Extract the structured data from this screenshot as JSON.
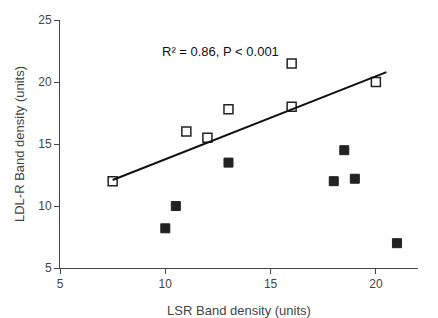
{
  "chart_data": {
    "type": "scatter",
    "xlabel": "LSR Band density (units)",
    "ylabel": "LDL-R Band density (units)",
    "annotation": "R² = 0.86, P < 0.001",
    "series": [
      {
        "type": "scatter",
        "marker": "square-open",
        "color": "#222222",
        "x": [
          7.5,
          11.0,
          12.0,
          13.0,
          16.0,
          16.0,
          20.0
        ],
        "values": [
          12.0,
          16.0,
          15.5,
          17.8,
          21.5,
          18.0,
          20.0
        ]
      },
      {
        "type": "scatter",
        "marker": "square",
        "color": "#222222",
        "x": [
          10.0,
          10.5,
          13.0,
          18.0,
          18.5,
          19.0,
          21.0
        ],
        "values": [
          8.2,
          10.0,
          13.5,
          12.0,
          14.5,
          12.2,
          7.0
        ]
      },
      {
        "type": "line",
        "line_style": "solid",
        "color": "#111111",
        "x": [
          7.5,
          20.5
        ],
        "values": [
          12.1,
          20.8
        ]
      }
    ],
    "xlim": [
      5,
      22
    ],
    "ylim": [
      5,
      25
    ],
    "xticks": [
      5,
      10,
      15,
      20
    ],
    "yticks": [
      5,
      10,
      15,
      20,
      25
    ],
    "grid": false
  }
}
